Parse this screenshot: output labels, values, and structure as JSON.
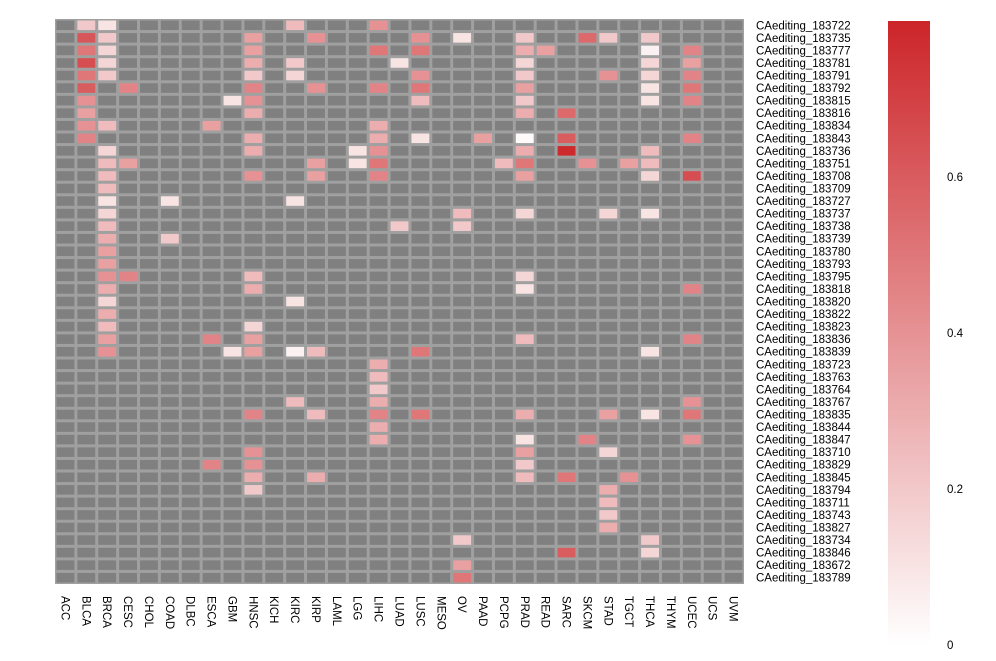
{
  "chart_data": {
    "type": "heatmap",
    "title": "",
    "columns": [
      "ACC",
      "BLCA",
      "BRCA",
      "CESC",
      "CHOL",
      "COAD",
      "DLBC",
      "ESCA",
      "GBM",
      "HNSC",
      "KICH",
      "KIRC",
      "KIRP",
      "LAML",
      "LGG",
      "LIHC",
      "LUAD",
      "LUSC",
      "MESO",
      "OV",
      "PAAD",
      "PCPG",
      "PRAD",
      "READ",
      "SARC",
      "SKCM",
      "STAD",
      "TGCT",
      "THCA",
      "THYM",
      "UCEC",
      "UCS",
      "UVM"
    ],
    "rows": [
      "CAediting_183722",
      "CAediting_183735",
      "CAediting_183777",
      "CAediting_183781",
      "CAediting_183791",
      "CAediting_183792",
      "CAediting_183815",
      "CAediting_183816",
      "CAediting_183834",
      "CAediting_183843",
      "CAediting_183736",
      "CAediting_183751",
      "CAediting_183708",
      "CAediting_183709",
      "CAediting_183727",
      "CAediting_183737",
      "CAediting_183738",
      "CAediting_183739",
      "CAediting_183780",
      "CAediting_183793",
      "CAediting_183795",
      "CAediting_183818",
      "CAediting_183820",
      "CAediting_183822",
      "CAediting_183823",
      "CAediting_183836",
      "CAediting_183839",
      "CAediting_183723",
      "CAediting_183763",
      "CAediting_183764",
      "CAediting_183767",
      "CAediting_183835",
      "CAediting_183844",
      "CAediting_183847",
      "CAediting_183710",
      "CAediting_183829",
      "CAediting_183845",
      "CAediting_183794",
      "CAediting_183711",
      "CAediting_183743",
      "CAediting_183827",
      "CAediting_183734",
      "CAediting_183846",
      "CAediting_183672",
      "CAediting_183789"
    ],
    "missing_color": "#808080",
    "cell_border_color": "#a0a0a0",
    "colormap": {
      "low_color": "#ffffff",
      "high_color": "#cc2529",
      "vmin": 0,
      "vmax": 0.8
    },
    "colorbar": {
      "ticks": [
        0,
        0.2,
        0.4,
        0.6
      ],
      "tick_labels": [
        "0",
        "0.2",
        "0.4",
        "0.6"
      ]
    },
    "cells": [
      {
        "row": "CAediting_183722",
        "col": "BLCA",
        "value": 0.2
      },
      {
        "row": "CAediting_183722",
        "col": "BRCA",
        "value": 0.1
      },
      {
        "row": "CAediting_183722",
        "col": "KIRC",
        "value": 0.25
      },
      {
        "row": "CAediting_183722",
        "col": "LIHC",
        "value": 0.4
      },
      {
        "row": "CAediting_183735",
        "col": "BLCA",
        "value": 0.62
      },
      {
        "row": "CAediting_183735",
        "col": "BRCA",
        "value": 0.2
      },
      {
        "row": "CAediting_183735",
        "col": "HNSC",
        "value": 0.35
      },
      {
        "row": "CAediting_183735",
        "col": "KIRP",
        "value": 0.4
      },
      {
        "row": "CAediting_183735",
        "col": "LUSC",
        "value": 0.4
      },
      {
        "row": "CAediting_183735",
        "col": "OV",
        "value": 0.1
      },
      {
        "row": "CAediting_183735",
        "col": "PRAD",
        "value": 0.2
      },
      {
        "row": "CAediting_183735",
        "col": "SKCM",
        "value": 0.55
      },
      {
        "row": "CAediting_183735",
        "col": "STAD",
        "value": 0.2
      },
      {
        "row": "CAediting_183735",
        "col": "THCA",
        "value": 0.2
      },
      {
        "row": "CAediting_183777",
        "col": "BLCA",
        "value": 0.5
      },
      {
        "row": "CAediting_183777",
        "col": "BRCA",
        "value": 0.15
      },
      {
        "row": "CAediting_183777",
        "col": "HNSC",
        "value": 0.35
      },
      {
        "row": "CAediting_183777",
        "col": "LIHC",
        "value": 0.5
      },
      {
        "row": "CAediting_183777",
        "col": "LUSC",
        "value": 0.5
      },
      {
        "row": "CAediting_183777",
        "col": "PRAD",
        "value": 0.3
      },
      {
        "row": "CAediting_183777",
        "col": "READ",
        "value": 0.35
      },
      {
        "row": "CAediting_183777",
        "col": "THCA",
        "value": 0.05
      },
      {
        "row": "CAediting_183777",
        "col": "UCEC",
        "value": 0.45
      },
      {
        "row": "CAediting_183781",
        "col": "BLCA",
        "value": 0.65
      },
      {
        "row": "CAediting_183781",
        "col": "BRCA",
        "value": 0.15
      },
      {
        "row": "CAediting_183781",
        "col": "HNSC",
        "value": 0.3
      },
      {
        "row": "CAediting_183781",
        "col": "KIRC",
        "value": 0.2
      },
      {
        "row": "CAediting_183781",
        "col": "LUAD",
        "value": 0.1
      },
      {
        "row": "CAediting_183781",
        "col": "PRAD",
        "value": 0.15
      },
      {
        "row": "CAediting_183781",
        "col": "THCA",
        "value": 0.15
      },
      {
        "row": "CAediting_183781",
        "col": "UCEC",
        "value": 0.35
      },
      {
        "row": "CAediting_183791",
        "col": "BLCA",
        "value": 0.5
      },
      {
        "row": "CAediting_183791",
        "col": "BRCA",
        "value": 0.2
      },
      {
        "row": "CAediting_183791",
        "col": "HNSC",
        "value": 0.2
      },
      {
        "row": "CAediting_183791",
        "col": "KIRC",
        "value": 0.15
      },
      {
        "row": "CAediting_183791",
        "col": "LUSC",
        "value": 0.4
      },
      {
        "row": "CAediting_183791",
        "col": "PRAD",
        "value": 0.2
      },
      {
        "row": "CAediting_183791",
        "col": "STAD",
        "value": 0.4
      },
      {
        "row": "CAediting_183791",
        "col": "THCA",
        "value": 0.15
      },
      {
        "row": "CAediting_183791",
        "col": "UCEC",
        "value": 0.45
      },
      {
        "row": "CAediting_183792",
        "col": "BLCA",
        "value": 0.6
      },
      {
        "row": "CAediting_183792",
        "col": "CESC",
        "value": 0.45
      },
      {
        "row": "CAediting_183792",
        "col": "HNSC",
        "value": 0.45
      },
      {
        "row": "CAediting_183792",
        "col": "KIRP",
        "value": 0.4
      },
      {
        "row": "CAediting_183792",
        "col": "LIHC",
        "value": 0.45
      },
      {
        "row": "CAediting_183792",
        "col": "LUSC",
        "value": 0.5
      },
      {
        "row": "CAediting_183792",
        "col": "PRAD",
        "value": 0.35
      },
      {
        "row": "CAediting_183792",
        "col": "THCA",
        "value": 0.1
      },
      {
        "row": "CAediting_183792",
        "col": "UCEC",
        "value": 0.5
      },
      {
        "row": "CAediting_183815",
        "col": "BLCA",
        "value": 0.4
      },
      {
        "row": "CAediting_183815",
        "col": "GBM",
        "value": 0.1
      },
      {
        "row": "CAediting_183815",
        "col": "HNSC",
        "value": 0.4
      },
      {
        "row": "CAediting_183815",
        "col": "LUSC",
        "value": 0.25
      },
      {
        "row": "CAediting_183815",
        "col": "PRAD",
        "value": 0.2
      },
      {
        "row": "CAediting_183815",
        "col": "THCA",
        "value": 0.1
      },
      {
        "row": "CAediting_183815",
        "col": "UCEC",
        "value": 0.45
      },
      {
        "row": "CAediting_183816",
        "col": "BLCA",
        "value": 0.35
      },
      {
        "row": "CAediting_183816",
        "col": "HNSC",
        "value": 0.3
      },
      {
        "row": "CAediting_183816",
        "col": "PRAD",
        "value": 0.3
      },
      {
        "row": "CAediting_183816",
        "col": "SARC",
        "value": 0.55
      },
      {
        "row": "CAediting_183834",
        "col": "BLCA",
        "value": 0.4
      },
      {
        "row": "CAediting_183834",
        "col": "BRCA",
        "value": 0.25
      },
      {
        "row": "CAediting_183834",
        "col": "ESCA",
        "value": 0.35
      },
      {
        "row": "CAediting_183834",
        "col": "LIHC",
        "value": 0.3
      },
      {
        "row": "CAediting_183843",
        "col": "BLCA",
        "value": 0.45
      },
      {
        "row": "CAediting_183843",
        "col": "HNSC",
        "value": 0.3
      },
      {
        "row": "CAediting_183843",
        "col": "LIHC",
        "value": 0.3
      },
      {
        "row": "CAediting_183843",
        "col": "LUSC",
        "value": 0.1
      },
      {
        "row": "CAediting_183843",
        "col": "PAAD",
        "value": 0.35
      },
      {
        "row": "CAediting_183843",
        "col": "PRAD",
        "value": 0.02
      },
      {
        "row": "CAediting_183843",
        "col": "SARC",
        "value": 0.6
      },
      {
        "row": "CAediting_183843",
        "col": "UCEC",
        "value": 0.45
      },
      {
        "row": "CAediting_183736",
        "col": "BRCA",
        "value": 0.15
      },
      {
        "row": "CAediting_183736",
        "col": "HNSC",
        "value": 0.3
      },
      {
        "row": "CAediting_183736",
        "col": "LGG",
        "value": 0.1
      },
      {
        "row": "CAediting_183736",
        "col": "LIHC",
        "value": 0.4
      },
      {
        "row": "CAediting_183736",
        "col": "PRAD",
        "value": 0.3
      },
      {
        "row": "CAediting_183736",
        "col": "SARC",
        "value": 0.78
      },
      {
        "row": "CAediting_183736",
        "col": "THCA",
        "value": 0.25
      },
      {
        "row": "CAediting_183751",
        "col": "BRCA",
        "value": 0.25
      },
      {
        "row": "CAediting_183751",
        "col": "CESC",
        "value": 0.35
      },
      {
        "row": "CAediting_183751",
        "col": "KIRP",
        "value": 0.35
      },
      {
        "row": "CAediting_183751",
        "col": "LGG",
        "value": 0.1
      },
      {
        "row": "CAediting_183751",
        "col": "LIHC",
        "value": 0.5
      },
      {
        "row": "CAediting_183751",
        "col": "PCPG",
        "value": 0.25
      },
      {
        "row": "CAediting_183751",
        "col": "PRAD",
        "value": 0.5
      },
      {
        "row": "CAediting_183751",
        "col": "SKCM",
        "value": 0.4
      },
      {
        "row": "CAediting_183751",
        "col": "TGCT",
        "value": 0.35
      },
      {
        "row": "CAediting_183751",
        "col": "THCA",
        "value": 0.25
      },
      {
        "row": "CAediting_183708",
        "col": "BRCA",
        "value": 0.25
      },
      {
        "row": "CAediting_183708",
        "col": "HNSC",
        "value": 0.4
      },
      {
        "row": "CAediting_183708",
        "col": "KIRP",
        "value": 0.35
      },
      {
        "row": "CAediting_183708",
        "col": "LIHC",
        "value": 0.45
      },
      {
        "row": "CAediting_183708",
        "col": "PRAD",
        "value": 0.35
      },
      {
        "row": "CAediting_183708",
        "col": "THCA",
        "value": 0.15
      },
      {
        "row": "CAediting_183708",
        "col": "UCEC",
        "value": 0.65
      },
      {
        "row": "CAediting_183709",
        "col": "BRCA",
        "value": 0.25
      },
      {
        "row": "CAediting_183727",
        "col": "BRCA",
        "value": 0.1
      },
      {
        "row": "CAediting_183727",
        "col": "COAD",
        "value": 0.1
      },
      {
        "row": "CAediting_183727",
        "col": "KIRC",
        "value": 0.1
      },
      {
        "row": "CAediting_183737",
        "col": "BRCA",
        "value": 0.15
      },
      {
        "row": "CAediting_183737",
        "col": "OV",
        "value": 0.25
      },
      {
        "row": "CAediting_183737",
        "col": "PRAD",
        "value": 0.15
      },
      {
        "row": "CAediting_183737",
        "col": "STAD",
        "value": 0.15
      },
      {
        "row": "CAediting_183737",
        "col": "THCA",
        "value": 0.1
      },
      {
        "row": "CAediting_183738",
        "col": "BRCA",
        "value": 0.25
      },
      {
        "row": "CAediting_183738",
        "col": "LUAD",
        "value": 0.2
      },
      {
        "row": "CAediting_183738",
        "col": "OV",
        "value": 0.2
      },
      {
        "row": "CAediting_183739",
        "col": "BRCA",
        "value": 0.3
      },
      {
        "row": "CAediting_183739",
        "col": "COAD",
        "value": 0.2
      },
      {
        "row": "CAediting_183780",
        "col": "BRCA",
        "value": 0.35
      },
      {
        "row": "CAediting_183793",
        "col": "BRCA",
        "value": 0.35
      },
      {
        "row": "CAediting_183795",
        "col": "BRCA",
        "value": 0.4
      },
      {
        "row": "CAediting_183795",
        "col": "CESC",
        "value": 0.45
      },
      {
        "row": "CAediting_183795",
        "col": "HNSC",
        "value": 0.25
      },
      {
        "row": "CAediting_183795",
        "col": "PRAD",
        "value": 0.15
      },
      {
        "row": "CAediting_183818",
        "col": "BRCA",
        "value": 0.3
      },
      {
        "row": "CAediting_183818",
        "col": "HNSC",
        "value": 0.3
      },
      {
        "row": "CAediting_183818",
        "col": "PRAD",
        "value": 0.1
      },
      {
        "row": "CAediting_183818",
        "col": "UCEC",
        "value": 0.45
      },
      {
        "row": "CAediting_183820",
        "col": "BRCA",
        "value": 0.15
      },
      {
        "row": "CAediting_183820",
        "col": "KIRC",
        "value": 0.1
      },
      {
        "row": "CAediting_183822",
        "col": "BRCA",
        "value": 0.3
      },
      {
        "row": "CAediting_183823",
        "col": "BRCA",
        "value": 0.25
      },
      {
        "row": "CAediting_183823",
        "col": "HNSC",
        "value": 0.15
      },
      {
        "row": "CAediting_183836",
        "col": "BRCA",
        "value": 0.35
      },
      {
        "row": "CAediting_183836",
        "col": "ESCA",
        "value": 0.45
      },
      {
        "row": "CAediting_183836",
        "col": "HNSC",
        "value": 0.35
      },
      {
        "row": "CAediting_183836",
        "col": "PRAD",
        "value": 0.25
      },
      {
        "row": "CAediting_183836",
        "col": "UCEC",
        "value": 0.45
      },
      {
        "row": "CAediting_183839",
        "col": "BRCA",
        "value": 0.4
      },
      {
        "row": "CAediting_183839",
        "col": "GBM",
        "value": 0.1
      },
      {
        "row": "CAediting_183839",
        "col": "HNSC",
        "value": 0.35
      },
      {
        "row": "CAediting_183839",
        "col": "KIRC",
        "value": 0.05
      },
      {
        "row": "CAediting_183839",
        "col": "KIRP",
        "value": 0.25
      },
      {
        "row": "CAediting_183839",
        "col": "LUSC",
        "value": 0.5
      },
      {
        "row": "CAediting_183839",
        "col": "THCA",
        "value": 0.1
      },
      {
        "row": "CAediting_183723",
        "col": "LIHC",
        "value": 0.3
      },
      {
        "row": "CAediting_183763",
        "col": "LIHC",
        "value": 0.25
      },
      {
        "row": "CAediting_183764",
        "col": "LIHC",
        "value": 0.2
      },
      {
        "row": "CAediting_183767",
        "col": "KIRC",
        "value": 0.25
      },
      {
        "row": "CAediting_183767",
        "col": "LIHC",
        "value": 0.3
      },
      {
        "row": "CAediting_183767",
        "col": "UCEC",
        "value": 0.4
      },
      {
        "row": "CAediting_183835",
        "col": "HNSC",
        "value": 0.45
      },
      {
        "row": "CAediting_183835",
        "col": "KIRP",
        "value": 0.25
      },
      {
        "row": "CAediting_183835",
        "col": "LIHC",
        "value": 0.45
      },
      {
        "row": "CAediting_183835",
        "col": "LUSC",
        "value": 0.5
      },
      {
        "row": "CAediting_183835",
        "col": "PRAD",
        "value": 0.3
      },
      {
        "row": "CAediting_183835",
        "col": "STAD",
        "value": 0.35
      },
      {
        "row": "CAediting_183835",
        "col": "THCA",
        "value": 0.1
      },
      {
        "row": "CAediting_183835",
        "col": "UCEC",
        "value": 0.5
      },
      {
        "row": "CAediting_183844",
        "col": "LIHC",
        "value": 0.3
      },
      {
        "row": "CAediting_183847",
        "col": "LIHC",
        "value": 0.3
      },
      {
        "row": "CAediting_183847",
        "col": "PRAD",
        "value": 0.1
      },
      {
        "row": "CAediting_183847",
        "col": "SKCM",
        "value": 0.45
      },
      {
        "row": "CAediting_183847",
        "col": "UCEC",
        "value": 0.4
      },
      {
        "row": "CAediting_183710",
        "col": "HNSC",
        "value": 0.4
      },
      {
        "row": "CAediting_183710",
        "col": "PRAD",
        "value": 0.35
      },
      {
        "row": "CAediting_183710",
        "col": "STAD",
        "value": 0.15
      },
      {
        "row": "CAediting_183829",
        "col": "ESCA",
        "value": 0.45
      },
      {
        "row": "CAediting_183829",
        "col": "HNSC",
        "value": 0.4
      },
      {
        "row": "CAediting_183829",
        "col": "PRAD",
        "value": 0.2
      },
      {
        "row": "CAediting_183845",
        "col": "HNSC",
        "value": 0.3
      },
      {
        "row": "CAediting_183845",
        "col": "KIRP",
        "value": 0.3
      },
      {
        "row": "CAediting_183845",
        "col": "PRAD",
        "value": 0.25
      },
      {
        "row": "CAediting_183845",
        "col": "SARC",
        "value": 0.5
      },
      {
        "row": "CAediting_183845",
        "col": "TGCT",
        "value": 0.4
      },
      {
        "row": "CAediting_183794",
        "col": "HNSC",
        "value": 0.2
      },
      {
        "row": "CAediting_183794",
        "col": "STAD",
        "value": 0.3
      },
      {
        "row": "CAediting_183711",
        "col": "STAD",
        "value": 0.25
      },
      {
        "row": "CAediting_183743",
        "col": "STAD",
        "value": 0.2
      },
      {
        "row": "CAediting_183827",
        "col": "STAD",
        "value": 0.3
      },
      {
        "row": "CAediting_183734",
        "col": "OV",
        "value": 0.2
      },
      {
        "row": "CAediting_183734",
        "col": "THCA",
        "value": 0.2
      },
      {
        "row": "CAediting_183846",
        "col": "SARC",
        "value": 0.6
      },
      {
        "row": "CAediting_183846",
        "col": "THCA",
        "value": 0.15
      },
      {
        "row": "CAediting_183672",
        "col": "OV",
        "value": 0.35
      },
      {
        "row": "CAediting_183789",
        "col": "OV",
        "value": 0.5
      }
    ]
  }
}
